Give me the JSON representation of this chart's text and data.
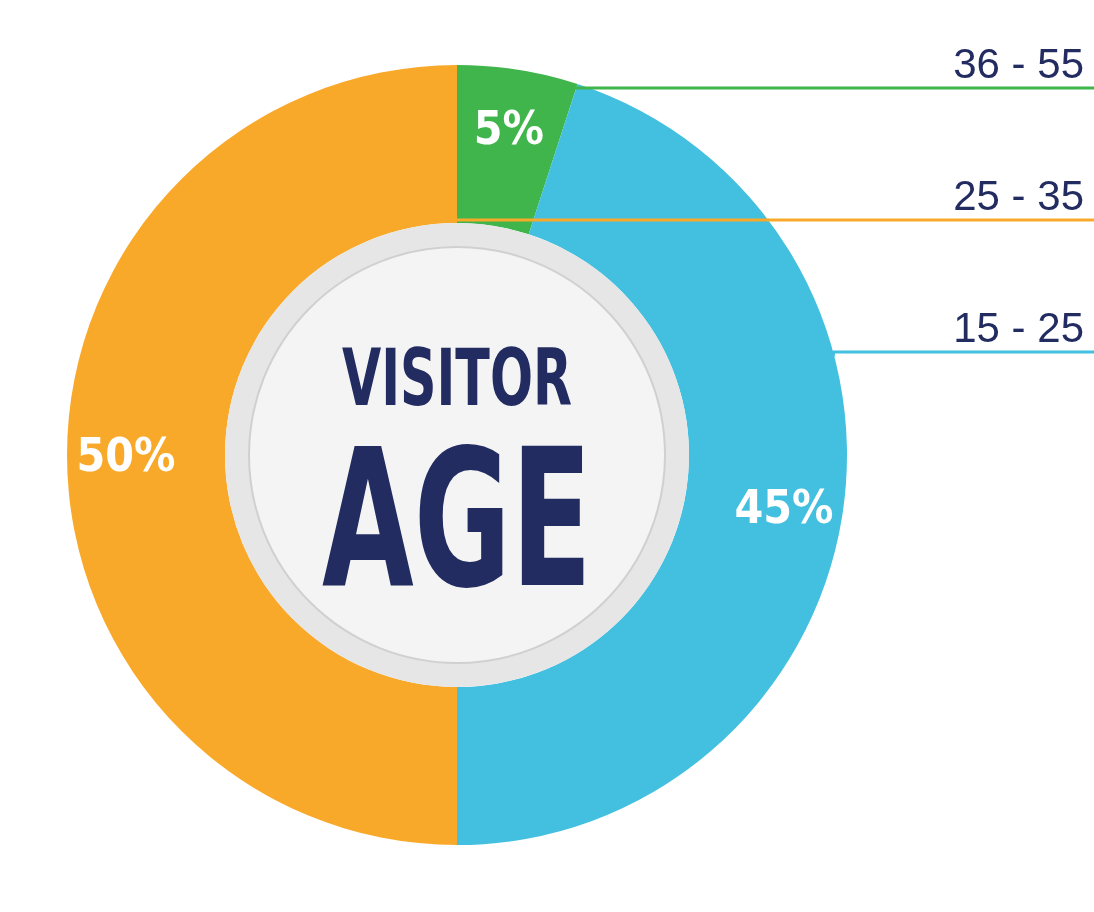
{
  "chart_data": {
    "type": "donut",
    "title": "VISITOR AGE",
    "categories": [
      "36 - 55",
      "15 - 25",
      "25 - 35"
    ],
    "values": [
      5,
      45,
      50
    ],
    "colors": [
      "#3fb54b",
      "#43bfdf",
      "#f9a92a"
    ],
    "value_labels": [
      "5%",
      "45%",
      "50%"
    ]
  }
}
